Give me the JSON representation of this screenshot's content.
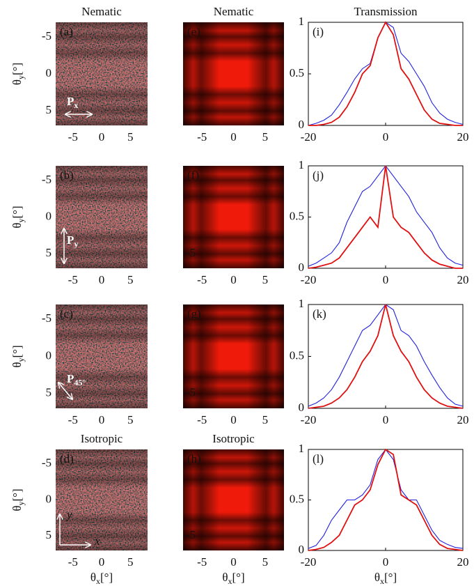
{
  "chart_data": [
    {
      "type": "image",
      "label": "(a)",
      "title": "Nematic",
      "ylabel": [
        "θ",
        "y",
        "[°]"
      ],
      "annotation": [
        "P",
        "x"
      ],
      "style": "noise",
      "y_inverted": true,
      "xlim": [
        -8,
        8
      ],
      "xticks": [
        -5,
        0,
        5
      ],
      "ylim": [
        -7,
        7
      ],
      "yticks": [
        -5,
        0,
        5
      ]
    },
    {
      "type": "image",
      "label": "(e)",
      "title": "Nematic",
      "style": "bands",
      "xlim": [
        -8,
        8
      ],
      "xticks": [
        -5,
        0,
        5
      ],
      "ylim": [
        -7,
        7
      ]
    },
    {
      "type": "line",
      "label": "(i)",
      "title": "Transmission",
      "xlim": [
        -20,
        20
      ],
      "xticks": [
        -20,
        0,
        20
      ],
      "ylim": [
        0,
        1
      ],
      "yticks": [
        0,
        0.5,
        1
      ],
      "x": [
        -20,
        -18,
        -16,
        -14,
        -12,
        -10,
        -8,
        -6,
        -4,
        -2,
        0,
        2,
        4,
        6,
        8,
        10,
        12,
        14,
        16,
        18,
        20
      ],
      "series": [
        {
          "color": "#2020e0",
          "values": [
            0,
            0.02,
            0.05,
            0.1,
            0.2,
            0.32,
            0.45,
            0.55,
            0.6,
            0.85,
            1,
            0.95,
            0.7,
            0.62,
            0.5,
            0.38,
            0.22,
            0.12,
            0.06,
            0.03,
            0.01
          ]
        },
        {
          "color": "#e01010",
          "values": [
            0,
            0,
            0.01,
            0.03,
            0.08,
            0.18,
            0.32,
            0.5,
            0.58,
            0.85,
            1,
            0.88,
            0.55,
            0.45,
            0.3,
            0.15,
            0.06,
            0.02,
            0.01,
            0,
            0
          ]
        }
      ]
    },
    {
      "type": "image",
      "label": "(b)",
      "ylabel": [
        "θ",
        "y",
        "[°]"
      ],
      "annotation": [
        "P",
        "y"
      ],
      "style": "noise",
      "y_inverted": true,
      "xlim": [
        -8,
        8
      ],
      "xticks": [
        -5,
        0,
        5
      ],
      "ylim": [
        -7,
        7
      ],
      "yticks": [
        -5,
        0,
        5
      ]
    },
    {
      "type": "image",
      "label": "(f)",
      "style": "bands",
      "xlim": [
        -8,
        8
      ],
      "xticks": [
        -5,
        0,
        5
      ],
      "ylim": [
        -7,
        7
      ],
      "yticks": [
        -5
      ]
    },
    {
      "type": "line",
      "label": "(j)",
      "xlim": [
        -20,
        20
      ],
      "xticks": [
        -20,
        0,
        20
      ],
      "ylim": [
        0,
        1
      ],
      "yticks": [
        0,
        0.5,
        1
      ],
      "x": [
        -20,
        -18,
        -16,
        -14,
        -12,
        -10,
        -8,
        -6,
        -4,
        -2,
        0,
        2,
        4,
        6,
        8,
        10,
        12,
        14,
        16,
        18,
        20
      ],
      "series": [
        {
          "color": "#2020e0",
          "values": [
            0.02,
            0.05,
            0.1,
            0.15,
            0.25,
            0.45,
            0.6,
            0.75,
            0.8,
            0.9,
            1,
            0.9,
            0.8,
            0.7,
            0.55,
            0.45,
            0.35,
            0.2,
            0.1,
            0.05,
            0.03
          ]
        },
        {
          "color": "#e01010",
          "values": [
            0,
            0.01,
            0.03,
            0.05,
            0.1,
            0.2,
            0.3,
            0.4,
            0.5,
            0.4,
            1,
            0.5,
            0.4,
            0.35,
            0.25,
            0.15,
            0.08,
            0.04,
            0.02,
            0,
            0
          ]
        }
      ]
    },
    {
      "type": "image",
      "label": "(c)",
      "ylabel": [
        "θ",
        "y",
        "[°]"
      ],
      "annotation": [
        "P",
        "45°"
      ],
      "style": "noise",
      "y_inverted": true,
      "xlim": [
        -8,
        8
      ],
      "xticks": [
        -5,
        0,
        5
      ],
      "ylim": [
        -7,
        7
      ],
      "yticks": [
        -5,
        0,
        5
      ]
    },
    {
      "type": "image",
      "label": "(g)",
      "style": "bands",
      "xlim": [
        -8,
        8
      ],
      "xticks": [
        -5,
        0,
        5
      ],
      "ylim": [
        -7,
        7
      ],
      "yticks": [
        -5
      ]
    },
    {
      "type": "line",
      "label": "(k)",
      "xlim": [
        -20,
        20
      ],
      "xticks": [
        -20,
        0,
        20
      ],
      "ylim": [
        0,
        1
      ],
      "yticks": [
        0,
        0.5,
        1
      ],
      "x": [
        -20,
        -18,
        -16,
        -14,
        -12,
        -10,
        -8,
        -6,
        -4,
        -2,
        0,
        2,
        4,
        6,
        8,
        10,
        12,
        14,
        16,
        18,
        20
      ],
      "series": [
        {
          "color": "#2020e0",
          "values": [
            0.02,
            0.05,
            0.1,
            0.18,
            0.3,
            0.45,
            0.6,
            0.75,
            0.8,
            0.9,
            1,
            0.95,
            0.75,
            0.7,
            0.6,
            0.45,
            0.32,
            0.2,
            0.1,
            0.04,
            0.02
          ]
        },
        {
          "color": "#e01010",
          "values": [
            0,
            0.01,
            0.02,
            0.05,
            0.1,
            0.18,
            0.3,
            0.45,
            0.55,
            0.7,
            1,
            0.7,
            0.55,
            0.45,
            0.3,
            0.18,
            0.1,
            0.05,
            0.02,
            0.01,
            0
          ]
        }
      ]
    },
    {
      "type": "image",
      "label": "(d)",
      "title": "Isotropic",
      "ylabel": [
        "θ",
        "y",
        "[°]"
      ],
      "xlabel": [
        "θ",
        "x",
        "[°]"
      ],
      "annotation": [
        "y",
        "x"
      ],
      "style": "noise",
      "y_inverted": true,
      "xlim": [
        -8,
        8
      ],
      "xticks": [
        -5,
        0,
        5
      ],
      "ylim": [
        -7,
        7
      ],
      "yticks": [
        -5,
        0,
        5
      ]
    },
    {
      "type": "image",
      "label": "(h)",
      "title": "Isotropic",
      "xlabel": [
        "θ",
        "x",
        "[°]"
      ],
      "style": "bands",
      "xlim": [
        -8,
        8
      ],
      "xticks": [
        -5,
        0,
        5
      ],
      "ylim": [
        -7,
        7
      ],
      "yticks": [
        -5
      ]
    },
    {
      "type": "line",
      "label": "(l)",
      "xlabel": [
        "θ",
        "x",
        "[°]"
      ],
      "xlim": [
        -20,
        20
      ],
      "xticks": [
        -20,
        0,
        20
      ],
      "ylim": [
        0,
        1
      ],
      "yticks": [
        0,
        0.5,
        1
      ],
      "x": [
        -20,
        -18,
        -16,
        -14,
        -12,
        -10,
        -8,
        -6,
        -4,
        -2,
        0,
        2,
        4,
        6,
        8,
        10,
        12,
        14,
        16,
        18,
        20
      ],
      "series": [
        {
          "color": "#2020e0",
          "values": [
            0.02,
            0.05,
            0.15,
            0.3,
            0.4,
            0.5,
            0.5,
            0.55,
            0.65,
            0.9,
            1,
            0.9,
            0.6,
            0.5,
            0.5,
            0.35,
            0.2,
            0.1,
            0.06,
            0.03,
            0.02
          ]
        },
        {
          "color": "#e01010",
          "values": [
            0,
            0.01,
            0.03,
            0.08,
            0.15,
            0.3,
            0.45,
            0.5,
            0.6,
            0.85,
            1,
            0.95,
            0.55,
            0.5,
            0.45,
            0.3,
            0.15,
            0.06,
            0.02,
            0.01,
            0
          ]
        }
      ]
    }
  ]
}
